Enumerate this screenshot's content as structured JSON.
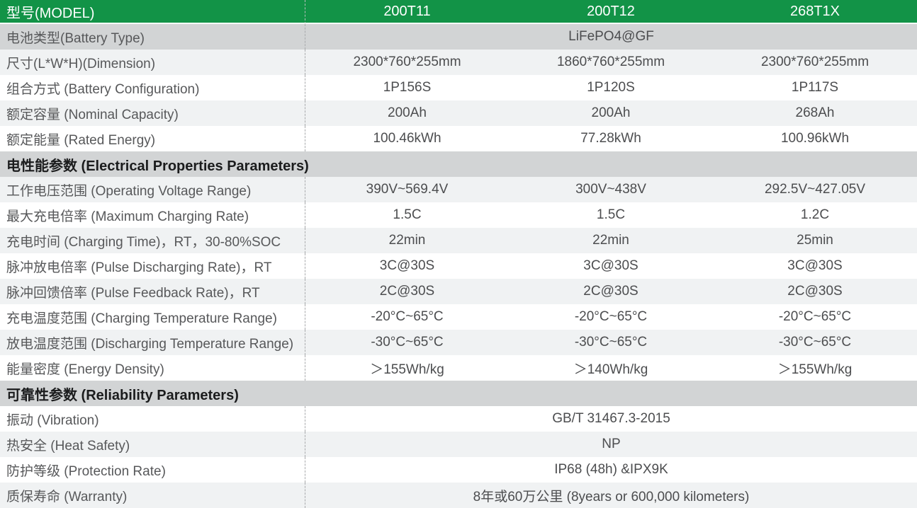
{
  "header": {
    "label": "型号(MODEL)",
    "models": [
      "200T11",
      "200T12",
      "268T1X"
    ]
  },
  "rows": [
    {
      "kind": "span",
      "bg": "dark",
      "label": "电池类型(Battery Type)",
      "value": "LiFePO4@GF"
    },
    {
      "kind": "cells",
      "bg": "light",
      "label": "尺寸(L*W*H)(Dimension)",
      "values": [
        "2300*760*255mm",
        "1860*760*255mm",
        "2300*760*255mm"
      ]
    },
    {
      "kind": "cells",
      "bg": "white",
      "label": "组合方式 (Battery Configuration)",
      "values": [
        "1P156S",
        "1P120S",
        "1P117S"
      ]
    },
    {
      "kind": "cells",
      "bg": "light",
      "label": "额定容量 (Nominal Capacity)",
      "values": [
        "200Ah",
        "200Ah",
        "268Ah"
      ]
    },
    {
      "kind": "cells",
      "bg": "white",
      "label": "额定能量 (Rated Energy)",
      "values": [
        "100.46kWh",
        "77.28kWh",
        "100.96kWh"
      ]
    },
    {
      "kind": "section",
      "bg": "dark",
      "label": "电性能参数 (Electrical Properties Parameters)"
    },
    {
      "kind": "cells",
      "bg": "light",
      "label": "工作电压范围 (Operating Voltage Range)",
      "values": [
        "390V~569.4V",
        "300V~438V",
        "292.5V~427.05V"
      ]
    },
    {
      "kind": "cells",
      "bg": "white",
      "label": "最大充电倍率 (Maximum Charging Rate)",
      "values": [
        "1.5C",
        "1.5C",
        "1.2C"
      ]
    },
    {
      "kind": "cells",
      "bg": "light",
      "label": "充电时间 (Charging Time)，RT，30-80%SOC",
      "values": [
        "22min",
        "22min",
        "25min"
      ]
    },
    {
      "kind": "cells",
      "bg": "white",
      "label": "脉冲放电倍率 (Pulse Discharging Rate)，RT",
      "values": [
        "3C@30S",
        "3C@30S",
        "3C@30S"
      ]
    },
    {
      "kind": "cells",
      "bg": "light",
      "label": "脉冲回馈倍率 (Pulse Feedback Rate)，RT",
      "values": [
        "2C@30S",
        "2C@30S",
        "2C@30S"
      ]
    },
    {
      "kind": "cells",
      "bg": "white",
      "label": "充电温度范围 (Charging Temperature Range)",
      "values": [
        "-20°C~65°C",
        "-20°C~65°C",
        "-20°C~65°C"
      ]
    },
    {
      "kind": "cells",
      "bg": "light",
      "label": "放电温度范围 (Discharging Temperature Range)",
      "values": [
        "-30°C~65°C",
        "-30°C~65°C",
        "-30°C~65°C"
      ]
    },
    {
      "kind": "cells",
      "bg": "white",
      "label": "能量密度 (Energy Density)",
      "values": [
        "＞155Wh/kg",
        "＞140Wh/kg",
        "＞155Wh/kg"
      ]
    },
    {
      "kind": "section",
      "bg": "dark",
      "label": "可靠性参数 (Reliability Parameters)"
    },
    {
      "kind": "span",
      "bg": "white",
      "label": "振动 (Vibration)",
      "value": "GB/T 31467.3-2015"
    },
    {
      "kind": "span",
      "bg": "light",
      "label": "热安全 (Heat Safety)",
      "value": "NP"
    },
    {
      "kind": "span",
      "bg": "white",
      "label": "防护等级 (Protection Rate)",
      "value": "IP68 (48h) &IPX9K"
    },
    {
      "kind": "span",
      "bg": "light",
      "label": "质保寿命 (Warranty)",
      "value": "8年或60万公里 (8years or 600,000 kilometers)"
    }
  ],
  "colors": {
    "header_green": "#129347",
    "header_text": "#ffffff",
    "section_band": "#d2d4d5",
    "zebra_light": "#f0f2f3",
    "zebra_white": "#ffffff",
    "dashed_divider": "#a9abad",
    "label_text": "#57585a",
    "value_text": "#4c4d4f",
    "section_text": "#1b1c1d"
  }
}
